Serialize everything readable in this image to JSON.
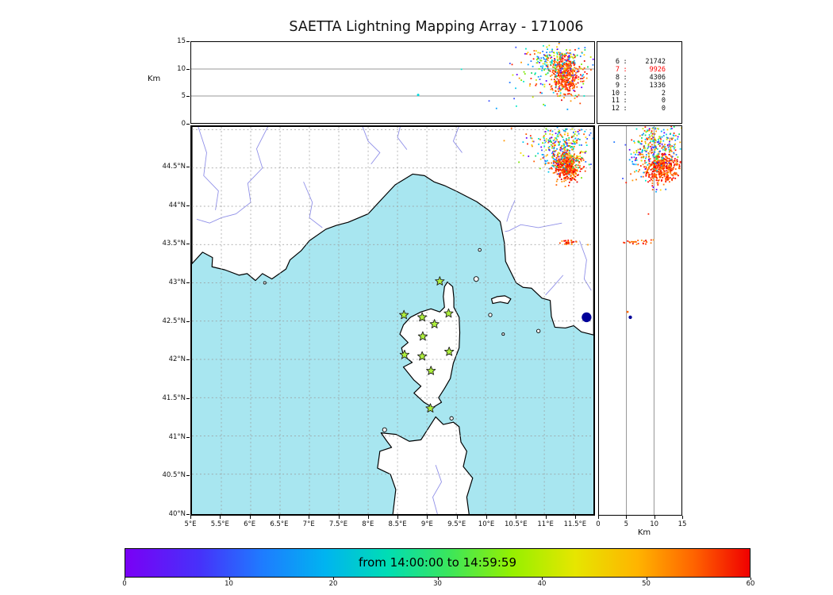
{
  "chart_data": {
    "type": "scatter",
    "title": "SAETTA Lightning Mapping Array - 171006",
    "colormap": "rainbow",
    "colorbar": {
      "label": "from 14:00:00 to 14:59:59",
      "min": 0,
      "max": 60,
      "ticks": [
        0,
        10,
        20,
        30,
        40,
        50,
        60
      ]
    },
    "station_source_counts": [
      {
        "stations": "6",
        "sources": "21742",
        "highlight": false
      },
      {
        "stations": "7",
        "sources": "9926",
        "highlight": true
      },
      {
        "stations": "8",
        "sources": "4306",
        "highlight": false
      },
      {
        "stations": "9",
        "sources": "1336",
        "highlight": false
      },
      {
        "stations": "10",
        "sources": "2",
        "highlight": false
      },
      {
        "stations": "11",
        "sources": "0",
        "highlight": false
      },
      {
        "stations": "12",
        "sources": "0",
        "highlight": false
      }
    ],
    "panels": {
      "top": {
        "ylabel": "Km",
        "xlim": [
          5,
          11.836
        ],
        "ylim": [
          0,
          15
        ],
        "yticks": [
          0,
          5,
          10,
          15
        ],
        "ygrid": [
          5,
          10
        ]
      },
      "map": {
        "xlim": [
          5,
          11.836
        ],
        "ylim": [
          40,
          45.04
        ],
        "lon_tick_values": [
          5,
          5.5,
          6,
          6.5,
          7,
          7.5,
          8,
          8.5,
          9,
          9.5,
          10,
          10.5,
          11,
          11.5
        ],
        "lon_tick_labels": [
          "5°E",
          "5.5°E",
          "6°E",
          "6.5°E",
          "7°E",
          "7.5°E",
          "8°E",
          "8.5°E",
          "9°E",
          "9.5°E",
          "10°E",
          "10.5°E",
          "11°E",
          "11.5°E"
        ],
        "lat_tick_values": [
          40,
          40.5,
          41,
          41.5,
          42,
          42.5,
          43,
          43.5,
          44,
          44.5
        ],
        "lat_tick_labels": [
          "40°N",
          "40.5°N",
          "41°N",
          "41.5°N",
          "42°N",
          "42.5°N",
          "43°N",
          "43.5°N",
          "44°N",
          "44.5°N"
        ],
        "lon_grid": [
          5.5,
          6,
          6.5,
          7,
          7.5,
          8,
          8.5,
          9,
          9.5,
          10,
          10.5,
          11,
          11.5
        ],
        "lat_grid": [
          40.5,
          41,
          41.5,
          42,
          42.5,
          43,
          43.5,
          44,
          44.5,
          45
        ]
      },
      "right": {
        "xlabel": "Km",
        "xlim": [
          0,
          15
        ],
        "xticks": [
          0,
          5,
          10,
          15
        ],
        "xgrid": [
          5,
          10
        ],
        "ylim": [
          40,
          45.04
        ]
      }
    },
    "lma_stations_lonlat": [
      [
        9.22,
        43.02
      ],
      [
        8.61,
        42.58
      ],
      [
        8.92,
        42.55
      ],
      [
        9.13,
        42.46
      ],
      [
        9.37,
        42.6
      ],
      [
        8.93,
        42.3
      ],
      [
        8.62,
        42.06
      ],
      [
        8.92,
        42.04
      ],
      [
        9.38,
        42.1
      ],
      [
        9.07,
        41.85
      ],
      [
        9.06,
        41.36
      ]
    ],
    "lightning_clusters": [
      {
        "panel": "top",
        "cx": 11.35,
        "cy": 8.8,
        "sx": 0.12,
        "sy": 1.9,
        "n": 420,
        "palette": "hot"
      },
      {
        "panel": "top",
        "cx": 11.2,
        "cy": 11.2,
        "sx": 0.25,
        "sy": 1.7,
        "n": 200,
        "palette": "mix"
      },
      {
        "panel": "top",
        "cx": 11.0,
        "cy": 8.0,
        "sx": 0.42,
        "sy": 2.6,
        "n": 80,
        "palette": "mix"
      },
      {
        "panel": "map",
        "cx": 11.38,
        "cy": 44.52,
        "sx": 0.11,
        "sy": 0.09,
        "n": 430,
        "palette": "hot"
      },
      {
        "panel": "map",
        "cx": 11.3,
        "cy": 44.78,
        "sx": 0.2,
        "sy": 0.16,
        "n": 240,
        "palette": "mix"
      },
      {
        "panel": "map",
        "cx": 11.15,
        "cy": 44.85,
        "sx": 0.35,
        "sy": 0.2,
        "n": 90,
        "palette": "mix"
      },
      {
        "panel": "map",
        "cx": 11.45,
        "cy": 43.53,
        "sx": 0.1,
        "sy": 0.015,
        "n": 28,
        "palette": "hot"
      },
      {
        "panel": "right",
        "cx": 11.5,
        "cy": 44.5,
        "sx": 1.7,
        "sy": 0.09,
        "n": 430,
        "palette": "hot"
      },
      {
        "panel": "right",
        "cx": 10.5,
        "cy": 44.82,
        "sx": 2.2,
        "sy": 0.15,
        "n": 240,
        "palette": "mix"
      },
      {
        "panel": "right",
        "cx": 9.5,
        "cy": 44.6,
        "sx": 2.6,
        "sy": 0.3,
        "n": 80,
        "palette": "mix"
      },
      {
        "panel": "right",
        "cx": 7.2,
        "cy": 43.53,
        "sx": 1.4,
        "sy": 0.015,
        "n": 26,
        "palette": "hot"
      }
    ],
    "isolated_points": [
      {
        "panel": "top",
        "x": 8.85,
        "y": 5.2,
        "color": "#00dbe0",
        "r": 1.5
      },
      {
        "panel": "right",
        "x": 5.7,
        "y": 42.55,
        "color": "#000099",
        "r": 2.2
      },
      {
        "panel": "right",
        "x": 5.2,
        "y": 42.62,
        "color": "#ff6400",
        "r": 1.4
      },
      {
        "panel": "map",
        "x": 11.72,
        "y": 42.55,
        "color": "#000099",
        "r": 6.2
      }
    ],
    "geo": {
      "mainland": [
        [
          5,
          43.25
        ],
        [
          5.18,
          43.4
        ],
        [
          5.35,
          43.33
        ],
        [
          5.34,
          43.21
        ],
        [
          5.56,
          43.17
        ],
        [
          5.8,
          43.1
        ],
        [
          5.94,
          43.12
        ],
        [
          6.08,
          43.03
        ],
        [
          6.2,
          43.12
        ],
        [
          6.36,
          43.05
        ],
        [
          6.6,
          43.18
        ],
        [
          6.67,
          43.3
        ],
        [
          6.86,
          43.42
        ],
        [
          7.0,
          43.55
        ],
        [
          7.28,
          43.7
        ],
        [
          7.46,
          43.75
        ],
        [
          7.66,
          43.79
        ],
        [
          8.0,
          43.9
        ],
        [
          8.24,
          44.1
        ],
        [
          8.46,
          44.28
        ],
        [
          8.76,
          44.42
        ],
        [
          8.96,
          44.4
        ],
        [
          9.12,
          44.32
        ],
        [
          9.3,
          44.27
        ],
        [
          9.52,
          44.19
        ],
        [
          9.85,
          44.06
        ],
        [
          10.05,
          43.95
        ],
        [
          10.25,
          43.8
        ],
        [
          10.32,
          43.52
        ],
        [
          10.34,
          43.28
        ],
        [
          10.52,
          43.0
        ],
        [
          10.64,
          42.94
        ],
        [
          10.78,
          42.93
        ],
        [
          10.96,
          42.8
        ],
        [
          11.1,
          42.77
        ],
        [
          11.12,
          42.56
        ],
        [
          11.18,
          42.42
        ],
        [
          11.36,
          42.41
        ],
        [
          11.5,
          42.44
        ],
        [
          11.63,
          42.36
        ],
        [
          11.84,
          42.32
        ],
        [
          11.84,
          45.05
        ],
        [
          5,
          45.05
        ]
      ],
      "corsica": [
        [
          9.35,
          43.01
        ],
        [
          9.44,
          42.95
        ],
        [
          9.46,
          42.8
        ],
        [
          9.46,
          42.68
        ],
        [
          9.55,
          42.55
        ],
        [
          9.56,
          42.35
        ],
        [
          9.55,
          42.15
        ],
        [
          9.45,
          41.95
        ],
        [
          9.4,
          41.75
        ],
        [
          9.3,
          41.62
        ],
        [
          9.2,
          41.5
        ],
        [
          9.25,
          41.44
        ],
        [
          9.1,
          41.37
        ],
        [
          8.95,
          41.44
        ],
        [
          8.78,
          41.56
        ],
        [
          8.9,
          41.65
        ],
        [
          8.78,
          41.73
        ],
        [
          8.6,
          41.9
        ],
        [
          8.75,
          41.96
        ],
        [
          8.6,
          42.05
        ],
        [
          8.57,
          42.15
        ],
        [
          8.68,
          42.22
        ],
        [
          8.54,
          42.33
        ],
        [
          8.6,
          42.45
        ],
        [
          8.72,
          42.55
        ],
        [
          8.9,
          42.62
        ],
        [
          9.07,
          42.66
        ],
        [
          9.22,
          42.62
        ],
        [
          9.3,
          42.68
        ],
        [
          9.28,
          42.82
        ],
        [
          9.3,
          42.95
        ]
      ],
      "sardinia": [
        [
          8.42,
          39.97
        ],
        [
          8.47,
          40.3
        ],
        [
          8.38,
          40.5
        ],
        [
          8.16,
          40.58
        ],
        [
          8.2,
          40.8
        ],
        [
          8.4,
          40.85
        ],
        [
          8.32,
          40.93
        ],
        [
          8.22,
          41.04
        ],
        [
          8.48,
          41.02
        ],
        [
          8.7,
          40.93
        ],
        [
          8.9,
          40.95
        ],
        [
          9.05,
          41.13
        ],
        [
          9.15,
          41.25
        ],
        [
          9.28,
          41.15
        ],
        [
          9.45,
          41.18
        ],
        [
          9.55,
          41.12
        ],
        [
          9.58,
          40.92
        ],
        [
          9.68,
          40.8
        ],
        [
          9.62,
          40.6
        ],
        [
          9.78,
          40.45
        ],
        [
          9.68,
          40.2
        ],
        [
          9.72,
          39.97
        ]
      ],
      "elba": [
        [
          10.1,
          42.79
        ],
        [
          10.2,
          42.82
        ],
        [
          10.33,
          42.83
        ],
        [
          10.43,
          42.79
        ],
        [
          10.38,
          42.73
        ],
        [
          10.25,
          42.75
        ],
        [
          10.12,
          42.73
        ]
      ],
      "islets": [
        [
          9.84,
          43.05,
          3
        ],
        [
          9.9,
          43.43,
          1.8
        ],
        [
          10.08,
          42.58,
          2.2
        ],
        [
          10.3,
          42.33,
          1.6
        ],
        [
          10.9,
          42.37,
          2.2
        ],
        [
          8.28,
          41.08,
          2.6
        ],
        [
          9.42,
          41.23,
          2.2
        ],
        [
          6.24,
          43.0,
          1.6
        ]
      ],
      "rivers": [
        [
          [
            5.1,
            45.05
          ],
          [
            5.25,
            44.7
          ],
          [
            5.2,
            44.4
          ],
          [
            5.45,
            44.2
          ],
          [
            5.4,
            43.95
          ]
        ],
        [
          [
            6.3,
            45.05
          ],
          [
            6.1,
            44.75
          ],
          [
            6.2,
            44.5
          ],
          [
            5.95,
            44.3
          ],
          [
            6.0,
            44.05
          ],
          [
            5.75,
            43.9
          ],
          [
            5.5,
            43.85
          ],
          [
            5.3,
            43.78
          ],
          [
            5.08,
            43.83
          ]
        ],
        [
          [
            6.9,
            44.32
          ],
          [
            7.05,
            44.05
          ],
          [
            7.0,
            43.85
          ],
          [
            7.22,
            43.72
          ]
        ],
        [
          [
            7.9,
            45.05
          ],
          [
            8.0,
            44.85
          ],
          [
            8.2,
            44.7
          ],
          [
            8.05,
            44.55
          ]
        ],
        [
          [
            8.55,
            45.05
          ],
          [
            8.5,
            44.9
          ],
          [
            8.66,
            44.74
          ]
        ],
        [
          [
            9.55,
            45.05
          ],
          [
            9.45,
            44.85
          ],
          [
            9.6,
            44.7
          ]
        ],
        [
          [
            11.3,
            43.78
          ],
          [
            10.9,
            43.72
          ],
          [
            10.6,
            43.76
          ],
          [
            10.4,
            43.68
          ],
          [
            10.33,
            43.67
          ]
        ],
        [
          [
            10.5,
            44.08
          ],
          [
            10.4,
            43.9
          ],
          [
            10.36,
            43.8
          ]
        ],
        [
          [
            11.6,
            43.55
          ],
          [
            11.72,
            43.3
          ],
          [
            11.68,
            43.05
          ],
          [
            11.8,
            42.9
          ]
        ],
        [
          [
            11.32,
            43.1
          ],
          [
            11.15,
            42.95
          ],
          [
            11.02,
            42.84
          ]
        ],
        [
          [
            9.15,
            40.62
          ],
          [
            9.25,
            40.4
          ],
          [
            9.1,
            40.2
          ],
          [
            9.18,
            39.98
          ]
        ]
      ]
    }
  },
  "colors": {
    "sea": "#a8e6f0",
    "land": "#ffffff",
    "coast": "#000000",
    "river": "#9090e8",
    "grid_dashed": "#999999",
    "grid_solid": "#787878",
    "lake": "#000099",
    "star_fill": "#aef03c",
    "star_stroke": "#1e1e1e",
    "highlight": "#ff0000",
    "text": "#111111"
  },
  "palettes": {
    "hot": [
      "#ff0000",
      "#ff1400",
      "#ff2d00",
      "#ff4600",
      "#ff5f00",
      "#ff7800",
      "#ff9100",
      "#e10000"
    ],
    "mix": [
      "#6400ff",
      "#3c50ff",
      "#1e78ff",
      "#00a0ff",
      "#00c8f0",
      "#00e6c8",
      "#14dc64",
      "#78e600",
      "#c8e600",
      "#ffd200",
      "#ff9600",
      "#ff5a00",
      "#ff1e00"
    ],
    "colorbar_stops": [
      "#7a00f5 0%",
      "#4632fa 12%",
      "#1e7cff 22%",
      "#00b4f0 32%",
      "#00ddb4 42%",
      "#3ce65a 52%",
      "#96f000 62%",
      "#e6e600 72%",
      "#ffb400 82%",
      "#ff6400 91%",
      "#f00000 100%"
    ]
  }
}
